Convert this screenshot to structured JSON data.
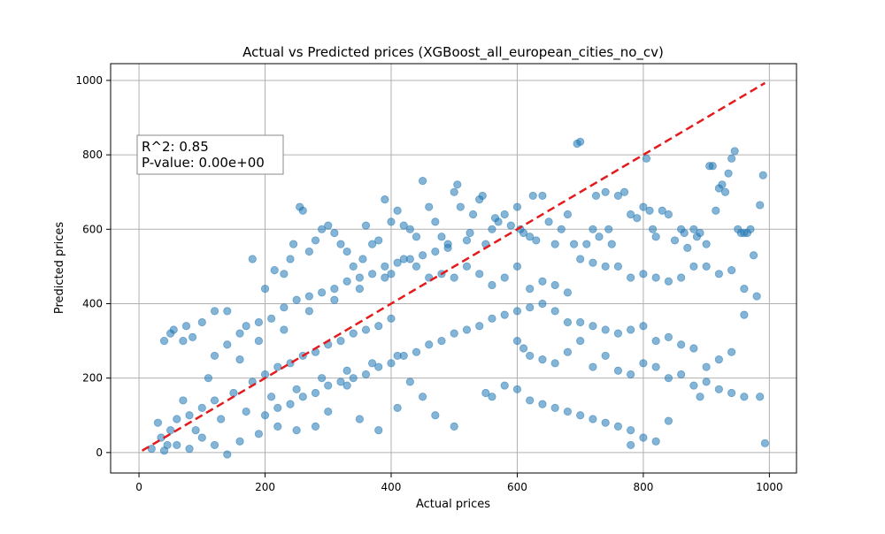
{
  "chart_data": {
    "type": "scatter",
    "title": "Actual vs Predicted prices (XGBoost_all_european_cities_no_cv)",
    "xlabel": "Actual prices",
    "ylabel": "Predicted prices",
    "xlim": [
      -45,
      1043
    ],
    "ylim": [
      -55,
      1045
    ],
    "xticks": [
      0,
      200,
      400,
      600,
      800,
      1000
    ],
    "yticks": [
      0,
      200,
      400,
      600,
      800,
      1000
    ],
    "grid": true,
    "annotation": [
      "R^2: 0.85",
      "P-value: 0.00e+00"
    ],
    "point_color": "#1f77b4",
    "point_alpha": 0.55,
    "reference_line": {
      "style": "dashed",
      "color": "#e41a1c",
      "from": [
        5,
        5
      ],
      "to": [
        993,
        993
      ]
    },
    "series": [
      {
        "points": [
          [
            20,
            10
          ],
          [
            35,
            40
          ],
          [
            50,
            60
          ],
          [
            60,
            90
          ],
          [
            80,
            100
          ],
          [
            100,
            120
          ],
          [
            120,
            140
          ],
          [
            150,
            160
          ],
          [
            180,
            190
          ],
          [
            200,
            210
          ],
          [
            220,
            230
          ],
          [
            240,
            240
          ],
          [
            260,
            260
          ],
          [
            280,
            270
          ],
          [
            300,
            290
          ],
          [
            320,
            300
          ],
          [
            340,
            320
          ],
          [
            360,
            330
          ],
          [
            380,
            340
          ],
          [
            400,
            360
          ],
          [
            30,
            80
          ],
          [
            45,
            20
          ],
          [
            70,
            140
          ],
          [
            90,
            60
          ],
          [
            110,
            200
          ],
          [
            130,
            90
          ],
          [
            160,
            250
          ],
          [
            170,
            110
          ],
          [
            190,
            300
          ],
          [
            210,
            150
          ],
          [
            230,
            330
          ],
          [
            250,
            170
          ],
          [
            270,
            380
          ],
          [
            290,
            200
          ],
          [
            310,
            410
          ],
          [
            330,
            220
          ],
          [
            350,
            440
          ],
          [
            370,
            240
          ],
          [
            390,
            470
          ],
          [
            410,
            260
          ],
          [
            40,
            300
          ],
          [
            50,
            320
          ],
          [
            55,
            330
          ],
          [
            70,
            300
          ],
          [
            75,
            340
          ],
          [
            85,
            310
          ],
          [
            100,
            350
          ],
          [
            120,
            380
          ],
          [
            140,
            380
          ],
          [
            180,
            520
          ],
          [
            200,
            440
          ],
          [
            215,
            490
          ],
          [
            230,
            480
          ],
          [
            240,
            520
          ],
          [
            245,
            560
          ],
          [
            255,
            660
          ],
          [
            260,
            650
          ],
          [
            270,
            540
          ],
          [
            280,
            570
          ],
          [
            290,
            600
          ],
          [
            300,
            610
          ],
          [
            310,
            590
          ],
          [
            320,
            560
          ],
          [
            330,
            540
          ],
          [
            340,
            500
          ],
          [
            355,
            520
          ],
          [
            360,
            610
          ],
          [
            370,
            560
          ],
          [
            380,
            570
          ],
          [
            390,
            680
          ],
          [
            400,
            620
          ],
          [
            410,
            650
          ],
          [
            420,
            610
          ],
          [
            430,
            600
          ],
          [
            440,
            580
          ],
          [
            450,
            730
          ],
          [
            460,
            660
          ],
          [
            470,
            620
          ],
          [
            480,
            580
          ],
          [
            490,
            560
          ],
          [
            500,
            700
          ],
          [
            505,
            720
          ],
          [
            510,
            660
          ],
          [
            520,
            570
          ],
          [
            525,
            590
          ],
          [
            530,
            640
          ],
          [
            540,
            680
          ],
          [
            545,
            690
          ],
          [
            550,
            560
          ],
          [
            560,
            600
          ],
          [
            565,
            630
          ],
          [
            570,
            620
          ],
          [
            580,
            640
          ],
          [
            590,
            610
          ],
          [
            600,
            660
          ],
          [
            605,
            600
          ],
          [
            610,
            590
          ],
          [
            620,
            580
          ],
          [
            625,
            690
          ],
          [
            630,
            570
          ],
          [
            640,
            690
          ],
          [
            650,
            620
          ],
          [
            660,
            560
          ],
          [
            670,
            600
          ],
          [
            680,
            640
          ],
          [
            690,
            560
          ],
          [
            695,
            830
          ],
          [
            700,
            835
          ],
          [
            710,
            560
          ],
          [
            720,
            600
          ],
          [
            725,
            690
          ],
          [
            730,
            580
          ],
          [
            740,
            700
          ],
          [
            745,
            600
          ],
          [
            750,
            560
          ],
          [
            760,
            690
          ],
          [
            770,
            700
          ],
          [
            780,
            640
          ],
          [
            790,
            630
          ],
          [
            800,
            660
          ],
          [
            805,
            790
          ],
          [
            810,
            650
          ],
          [
            815,
            600
          ],
          [
            820,
            580
          ],
          [
            830,
            650
          ],
          [
            840,
            640
          ],
          [
            850,
            570
          ],
          [
            860,
            600
          ],
          [
            865,
            590
          ],
          [
            870,
            550
          ],
          [
            880,
            600
          ],
          [
            885,
            580
          ],
          [
            890,
            590
          ],
          [
            900,
            560
          ],
          [
            905,
            770
          ],
          [
            910,
            770
          ],
          [
            915,
            650
          ],
          [
            920,
            710
          ],
          [
            925,
            720
          ],
          [
            930,
            700
          ],
          [
            935,
            750
          ],
          [
            940,
            790
          ],
          [
            945,
            810
          ],
          [
            950,
            600
          ],
          [
            955,
            590
          ],
          [
            960,
            590
          ],
          [
            965,
            590
          ],
          [
            970,
            600
          ],
          [
            975,
            530
          ],
          [
            985,
            665
          ],
          [
            990,
            745
          ],
          [
            400,
            480
          ],
          [
            420,
            520
          ],
          [
            440,
            500
          ],
          [
            460,
            470
          ],
          [
            480,
            480
          ],
          [
            500,
            470
          ],
          [
            520,
            500
          ],
          [
            540,
            480
          ],
          [
            560,
            450
          ],
          [
            580,
            470
          ],
          [
            600,
            500
          ],
          [
            620,
            440
          ],
          [
            640,
            460
          ],
          [
            660,
            450
          ],
          [
            680,
            430
          ],
          [
            700,
            520
          ],
          [
            720,
            510
          ],
          [
            740,
            500
          ],
          [
            760,
            500
          ],
          [
            780,
            470
          ],
          [
            800,
            480
          ],
          [
            820,
            470
          ],
          [
            840,
            460
          ],
          [
            860,
            470
          ],
          [
            880,
            500
          ],
          [
            900,
            500
          ],
          [
            920,
            480
          ],
          [
            940,
            490
          ],
          [
            960,
            440
          ],
          [
            600,
            380
          ],
          [
            620,
            390
          ],
          [
            640,
            400
          ],
          [
            660,
            380
          ],
          [
            680,
            350
          ],
          [
            700,
            350
          ],
          [
            720,
            340
          ],
          [
            740,
            330
          ],
          [
            760,
            320
          ],
          [
            780,
            330
          ],
          [
            800,
            340
          ],
          [
            820,
            300
          ],
          [
            840,
            310
          ],
          [
            860,
            290
          ],
          [
            880,
            280
          ],
          [
            900,
            230
          ],
          [
            920,
            250
          ],
          [
            940,
            270
          ],
          [
            960,
            370
          ],
          [
            980,
            420
          ],
          [
            600,
            300
          ],
          [
            610,
            280
          ],
          [
            620,
            260
          ],
          [
            640,
            250
          ],
          [
            660,
            240
          ],
          [
            680,
            270
          ],
          [
            700,
            300
          ],
          [
            720,
            230
          ],
          [
            740,
            260
          ],
          [
            760,
            220
          ],
          [
            780,
            210
          ],
          [
            800,
            240
          ],
          [
            820,
            230
          ],
          [
            840,
            200
          ],
          [
            860,
            210
          ],
          [
            880,
            180
          ],
          [
            900,
            190
          ],
          [
            920,
            170
          ],
          [
            940,
            160
          ],
          [
            960,
            150
          ],
          [
            550,
            160
          ],
          [
            560,
            150
          ],
          [
            580,
            180
          ],
          [
            600,
            170
          ],
          [
            620,
            140
          ],
          [
            640,
            130
          ],
          [
            660,
            120
          ],
          [
            680,
            110
          ],
          [
            700,
            100
          ],
          [
            720,
            90
          ],
          [
            740,
            80
          ],
          [
            760,
            70
          ],
          [
            780,
            60
          ],
          [
            800,
            40
          ],
          [
            820,
            30
          ],
          [
            780,
            20
          ],
          [
            840,
            85
          ],
          [
            890,
            150
          ],
          [
            985,
            150
          ],
          [
            993,
            25
          ],
          [
            500,
            70
          ],
          [
            470,
            100
          ],
          [
            450,
            150
          ],
          [
            430,
            190
          ],
          [
            410,
            120
          ],
          [
            380,
            60
          ],
          [
            350,
            90
          ],
          [
            330,
            180
          ],
          [
            300,
            110
          ],
          [
            280,
            70
          ],
          [
            250,
            60
          ],
          [
            220,
            70
          ],
          [
            190,
            50
          ],
          [
            160,
            30
          ],
          [
            140,
            -5
          ],
          [
            120,
            20
          ],
          [
            100,
            40
          ],
          [
            80,
            10
          ],
          [
            60,
            20
          ],
          [
            40,
            5
          ],
          [
            120,
            260
          ],
          [
            140,
            290
          ],
          [
            160,
            320
          ],
          [
            170,
            340
          ],
          [
            190,
            350
          ],
          [
            210,
            360
          ],
          [
            230,
            390
          ],
          [
            250,
            410
          ],
          [
            270,
            420
          ],
          [
            290,
            430
          ],
          [
            310,
            440
          ],
          [
            330,
            460
          ],
          [
            350,
            470
          ],
          [
            370,
            480
          ],
          [
            390,
            500
          ],
          [
            410,
            510
          ],
          [
            430,
            520
          ],
          [
            450,
            530
          ],
          [
            470,
            540
          ],
          [
            490,
            550
          ],
          [
            200,
            100
          ],
          [
            220,
            120
          ],
          [
            240,
            130
          ],
          [
            260,
            150
          ],
          [
            280,
            160
          ],
          [
            300,
            180
          ],
          [
            320,
            190
          ],
          [
            340,
            200
          ],
          [
            360,
            210
          ],
          [
            380,
            230
          ],
          [
            400,
            240
          ],
          [
            420,
            260
          ],
          [
            440,
            270
          ],
          [
            460,
            290
          ],
          [
            480,
            300
          ],
          [
            500,
            320
          ],
          [
            520,
            330
          ],
          [
            540,
            340
          ],
          [
            560,
            360
          ],
          [
            580,
            370
          ]
        ]
      }
    ]
  }
}
